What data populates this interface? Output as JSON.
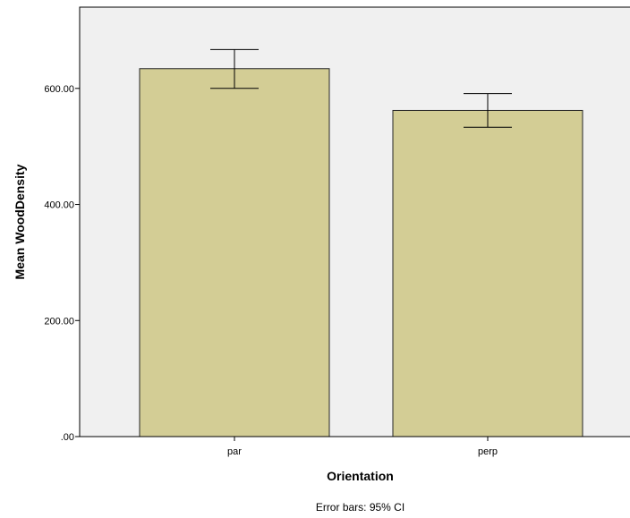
{
  "chart_data": {
    "type": "bar",
    "categories": [
      "par",
      "perp"
    ],
    "values": [
      634,
      562
    ],
    "error_bars": {
      "lower": [
        600,
        533
      ],
      "upper": [
        667,
        591
      ]
    },
    "xlabel": "Orientation",
    "ylabel": "Mean WoodDensity",
    "ylim": [
      0,
      740
    ],
    "yticks": [
      0,
      200,
      400,
      600
    ],
    "ytick_labels": [
      ".00",
      "200.00",
      "400.00",
      "600.00"
    ],
    "footnote": "Error bars: 95% CI",
    "grid": false,
    "colors": {
      "bar_fill": "#d3cd95",
      "bar_stroke": "#262626",
      "plot_bg": "#f0f0f0",
      "axis": "#000000"
    }
  }
}
